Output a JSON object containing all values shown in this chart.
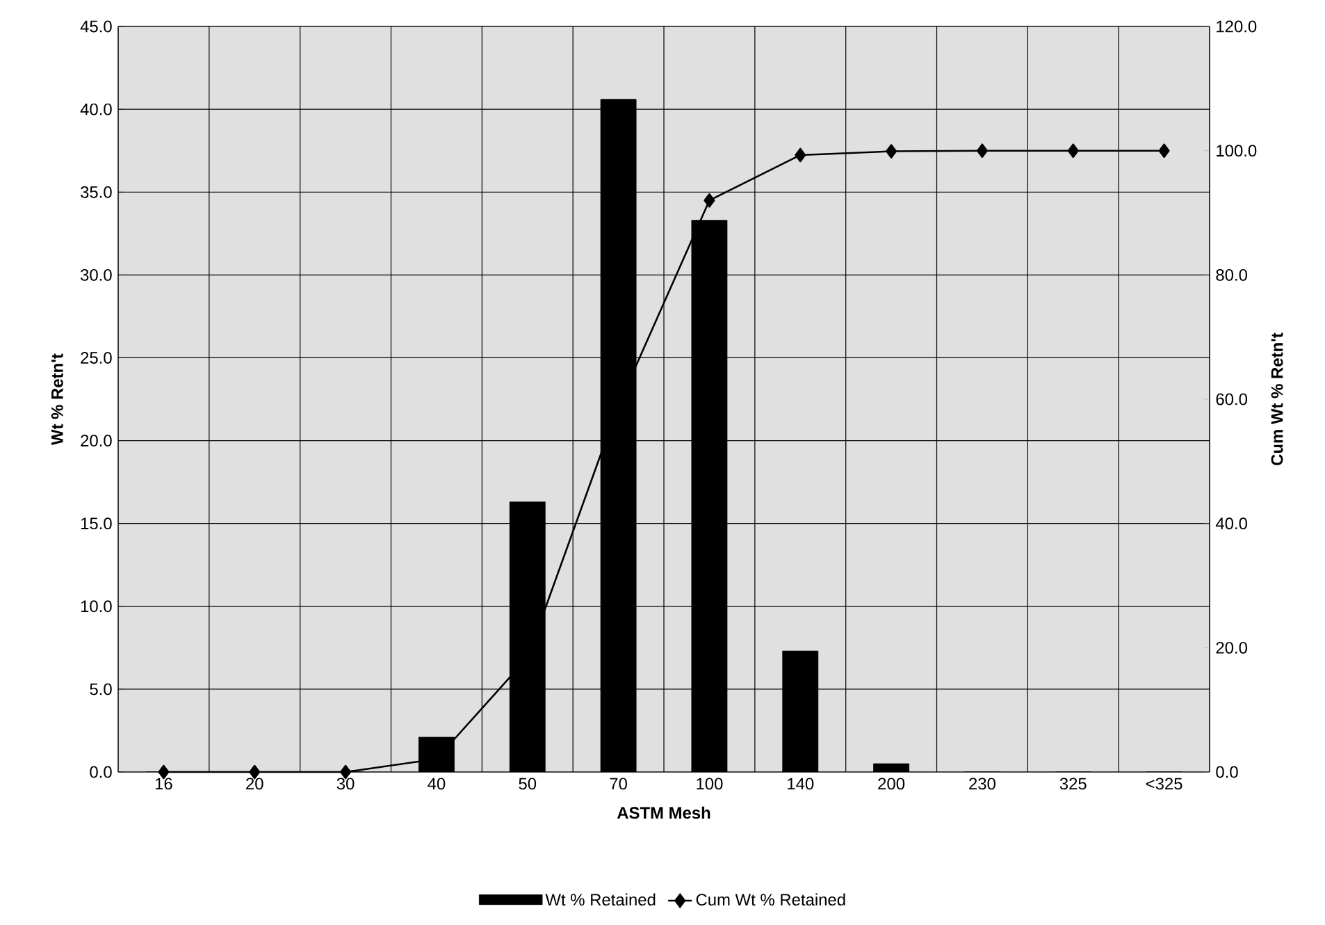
{
  "chart_data": {
    "type": "bar",
    "xlabel": "ASTM Mesh",
    "ylabel": "Wt % Retn't",
    "y2label": "Cum Wt % Retn't",
    "categories": [
      "16",
      "20",
      "30",
      "40",
      "50",
      "70",
      "100",
      "140",
      "200",
      "230",
      "325",
      "<325"
    ],
    "series": [
      {
        "name": "Wt % Retained",
        "color": "#000000",
        "values": [
          0,
          0,
          0,
          2.1,
          16.3,
          40.6,
          33.3,
          7.3,
          0.5,
          0,
          0,
          0
        ]
      },
      {
        "name": "Cum Wt % Retained",
        "type": "line",
        "axis": "y2",
        "color": "#000000",
        "marker": "diamond",
        "values": [
          0,
          0,
          0,
          2.1,
          18.4,
          59.0,
          92.0,
          99.3,
          99.9,
          100,
          100,
          100
        ]
      }
    ],
    "ylim": [
      0,
      45
    ],
    "yticks": [
      {
        "value": 0,
        "label": "0.0"
      },
      {
        "value": 5,
        "label": "5.0"
      },
      {
        "value": 10,
        "label": "10.0"
      },
      {
        "value": 15,
        "label": "15.0"
      },
      {
        "value": 20,
        "label": "20.0"
      },
      {
        "value": 25,
        "label": "25.0"
      },
      {
        "value": 30,
        "label": "30.0"
      },
      {
        "value": 35,
        "label": "35.0"
      },
      {
        "value": 40,
        "label": "40.0"
      },
      {
        "value": 45,
        "label": "45.0"
      }
    ],
    "y2lim": [
      0,
      120
    ],
    "y2ticks": [
      {
        "value": 0,
        "label": "0.0"
      },
      {
        "value": 20,
        "label": "20.0"
      },
      {
        "value": 40,
        "label": "40.0"
      },
      {
        "value": 60,
        "label": "60.0"
      },
      {
        "value": 80,
        "label": "80.0"
      },
      {
        "value": 100,
        "label": "100.0"
      },
      {
        "value": 120,
        "label": "120.0"
      }
    ],
    "grid": true,
    "legend": "bottom"
  }
}
